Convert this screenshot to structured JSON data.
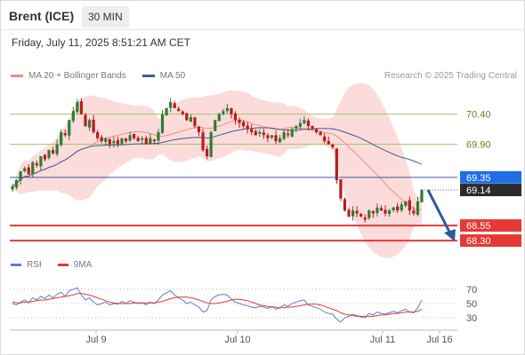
{
  "header": {
    "instrument": "Brent (ICE)",
    "timeframe": "30 MIN"
  },
  "timestamp": "Friday, July 11, 2025 8:51:21 AM CET",
  "legend": {
    "items": [
      {
        "label": "MA 20 + Bollinger Bands",
        "color": "#f28b82"
      },
      {
        "label": "MA 50",
        "color": "#3d5a99"
      }
    ]
  },
  "credit": "Research © 2025 Trading Central",
  "rsi_legend": {
    "items": [
      {
        "label": "RSI",
        "color": "#5b7fd6"
      },
      {
        "label": "9MA",
        "color": "#e53935"
      }
    ]
  },
  "colors": {
    "up": "#2e7d32",
    "down": "#b71c1c",
    "bollinger": "#fbd5d5",
    "ma20": "#f28b82",
    "ma50": "#3d5a99",
    "resistance": "#9ccc65",
    "support": "#e53935",
    "arrow": "#2d5aa0",
    "current": "#2b2b2b",
    "ma50tag": "#1e6fe6"
  },
  "chart_data": {
    "type": "candlestick",
    "y_range": [
      68.08,
      70.88
    ],
    "x_labels": [
      "Jul 9",
      "Jul 10",
      "Jul 11",
      "Jul 16"
    ],
    "levels": {
      "resistance": [
        70.4,
        69.9
      ],
      "support": [
        68.55,
        68.3
      ],
      "ma50": 69.35,
      "last": 69.14
    },
    "level_labels": {
      "resistance": [
        "70.40",
        "69.90"
      ],
      "support": [
        "68.55",
        "68.30"
      ],
      "ma50": "69.35",
      "last": "69.14"
    },
    "forecast": {
      "from": 69.14,
      "to": 68.3
    },
    "closes": [
      69.2,
      69.3,
      69.45,
      69.5,
      69.4,
      69.6,
      69.55,
      69.7,
      69.65,
      69.8,
      69.75,
      69.9,
      70.1,
      70.05,
      70.3,
      70.45,
      70.6,
      70.4,
      70.2,
      70.3,
      70.1,
      70.0,
      69.95,
      70.0,
      69.9,
      69.95,
      69.9,
      70.0,
      69.95,
      70.05,
      70.0,
      69.95,
      70.0,
      69.9,
      70.0,
      69.95,
      70.1,
      70.4,
      70.5,
      70.6,
      70.5,
      70.45,
      70.4,
      70.3,
      70.35,
      70.2,
      70.1,
      69.8,
      69.7,
      70.1,
      70.3,
      70.4,
      70.45,
      70.5,
      70.4,
      70.3,
      70.25,
      70.2,
      70.15,
      70.1,
      70.05,
      70.1,
      70.05,
      70.0,
      70.05,
      69.95,
      70.0,
      70.1,
      70.05,
      70.15,
      70.2,
      70.25,
      70.3,
      70.2,
      70.15,
      70.1,
      70.05,
      69.95,
      69.9,
      69.85,
      69.3,
      69.0,
      68.8,
      68.7,
      68.8,
      68.75,
      68.7,
      68.65,
      68.8,
      68.75,
      68.85,
      68.8,
      68.75,
      68.8,
      68.85,
      68.8,
      68.9,
      68.95,
      68.8,
      68.75,
      68.95,
      69.14
    ],
    "rsi": [
      50,
      48,
      52,
      55,
      51,
      58,
      55,
      60,
      57,
      62,
      58,
      63,
      66,
      60,
      68,
      70,
      72,
      62,
      55,
      58,
      52,
      48,
      50,
      52,
      48,
      50,
      49,
      53,
      50,
      54,
      52,
      50,
      51,
      48,
      52,
      50,
      55,
      62,
      65,
      68,
      62,
      58,
      55,
      50,
      52,
      48,
      45,
      38,
      40,
      55,
      60,
      62,
      63,
      62,
      56,
      52,
      50,
      48,
      47,
      45,
      44,
      46,
      45,
      43,
      46,
      42,
      44,
      48,
      46,
      50,
      52,
      54,
      55,
      48,
      46,
      44,
      42,
      38,
      36,
      35,
      28,
      24,
      30,
      32,
      35,
      33,
      31,
      30,
      36,
      34,
      38,
      36,
      35,
      37,
      39,
      37,
      40,
      42,
      38,
      37,
      44,
      55
    ],
    "rsi_ma": [
      52,
      51,
      51,
      52,
      52,
      53,
      54,
      55,
      55,
      56,
      57,
      58,
      59,
      60,
      61,
      62,
      64,
      64,
      63,
      62,
      60,
      58,
      56,
      54,
      52,
      51,
      50,
      50,
      50,
      50,
      51,
      51,
      51,
      51,
      51,
      51,
      52,
      53,
      55,
      57,
      58,
      59,
      59,
      59,
      58,
      57,
      55,
      53,
      51,
      50,
      50,
      51,
      52,
      53,
      55,
      56,
      56,
      55,
      54,
      52,
      50,
      48,
      47,
      46,
      45,
      45,
      44,
      44,
      45,
      45,
      46,
      47,
      48,
      49,
      49,
      49,
      48,
      46,
      44,
      42,
      40,
      37,
      35,
      34,
      33,
      32,
      32,
      32,
      32,
      32,
      33,
      34,
      34,
      35,
      36,
      36,
      37,
      38,
      38,
      38,
      39,
      42
    ],
    "rsi_levels": [
      70,
      50,
      30
    ],
    "rsi_range": [
      20,
      85
    ]
  }
}
